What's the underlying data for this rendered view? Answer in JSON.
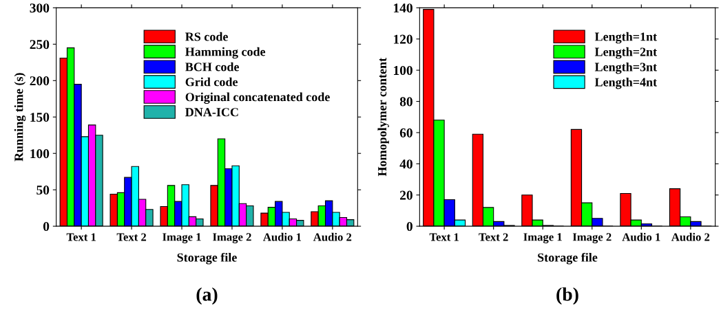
{
  "chart_data": [
    {
      "type": "bar",
      "xlabel": "Storage file",
      "ylabel": "Running time (s)",
      "categories": [
        "Text 1",
        "Text 2",
        "Image 1",
        "Image 2",
        "Audio 1",
        "Audio 2"
      ],
      "series": [
        {
          "name": "RS code",
          "color": "#ff0000",
          "values": [
            231,
            44,
            27,
            56,
            18,
            20
          ]
        },
        {
          "name": "Hamming code",
          "color": "#00ff00",
          "values": [
            245,
            46,
            56,
            120,
            26,
            28
          ]
        },
        {
          "name": "BCH code",
          "color": "#0000ff",
          "values": [
            195,
            67,
            34,
            79,
            34,
            35
          ]
        },
        {
          "name": "Grid code",
          "color": "#00ffff",
          "values": [
            123,
            82,
            57,
            83,
            19,
            19
          ]
        },
        {
          "name": "Original concatenated code",
          "color": "#ff00ff",
          "values": [
            139,
            37,
            13,
            31,
            10,
            12
          ]
        },
        {
          "name": "DNA-ICC",
          "color": "#20b2aa",
          "values": [
            125,
            23,
            10,
            28,
            8,
            9
          ]
        }
      ],
      "ylim": [
        0,
        300
      ],
      "yticks": [
        0,
        50,
        100,
        150,
        200,
        250,
        300
      ],
      "legend": "top",
      "annotations": [
        "(a)"
      ]
    },
    {
      "type": "bar",
      "xlabel": "Storage file",
      "ylabel": "Homopolymer content",
      "categories": [
        "Text 1",
        "Text 2",
        "Image 1",
        "Image 2",
        "Audio 1",
        "Audio 2"
      ],
      "series": [
        {
          "name": "Length=1nt",
          "color": "#ff0000",
          "values": [
            139,
            59,
            20,
            62,
            21,
            24
          ]
        },
        {
          "name": "Length=2nt",
          "color": "#00ff00",
          "values": [
            68,
            12,
            4,
            15,
            4,
            6
          ]
        },
        {
          "name": "Length=3nt",
          "color": "#0000ff",
          "values": [
            17,
            3,
            0.5,
            5,
            1.5,
            3
          ]
        },
        {
          "name": "Length=4nt",
          "color": "#00ffff",
          "values": [
            4,
            0.5,
            0,
            0,
            0,
            0
          ]
        }
      ],
      "ylim": [
        0,
        140
      ],
      "yticks": [
        0,
        20,
        40,
        60,
        80,
        100,
        120,
        140
      ],
      "legend": "top right",
      "annotations": [
        "(b)"
      ]
    }
  ]
}
